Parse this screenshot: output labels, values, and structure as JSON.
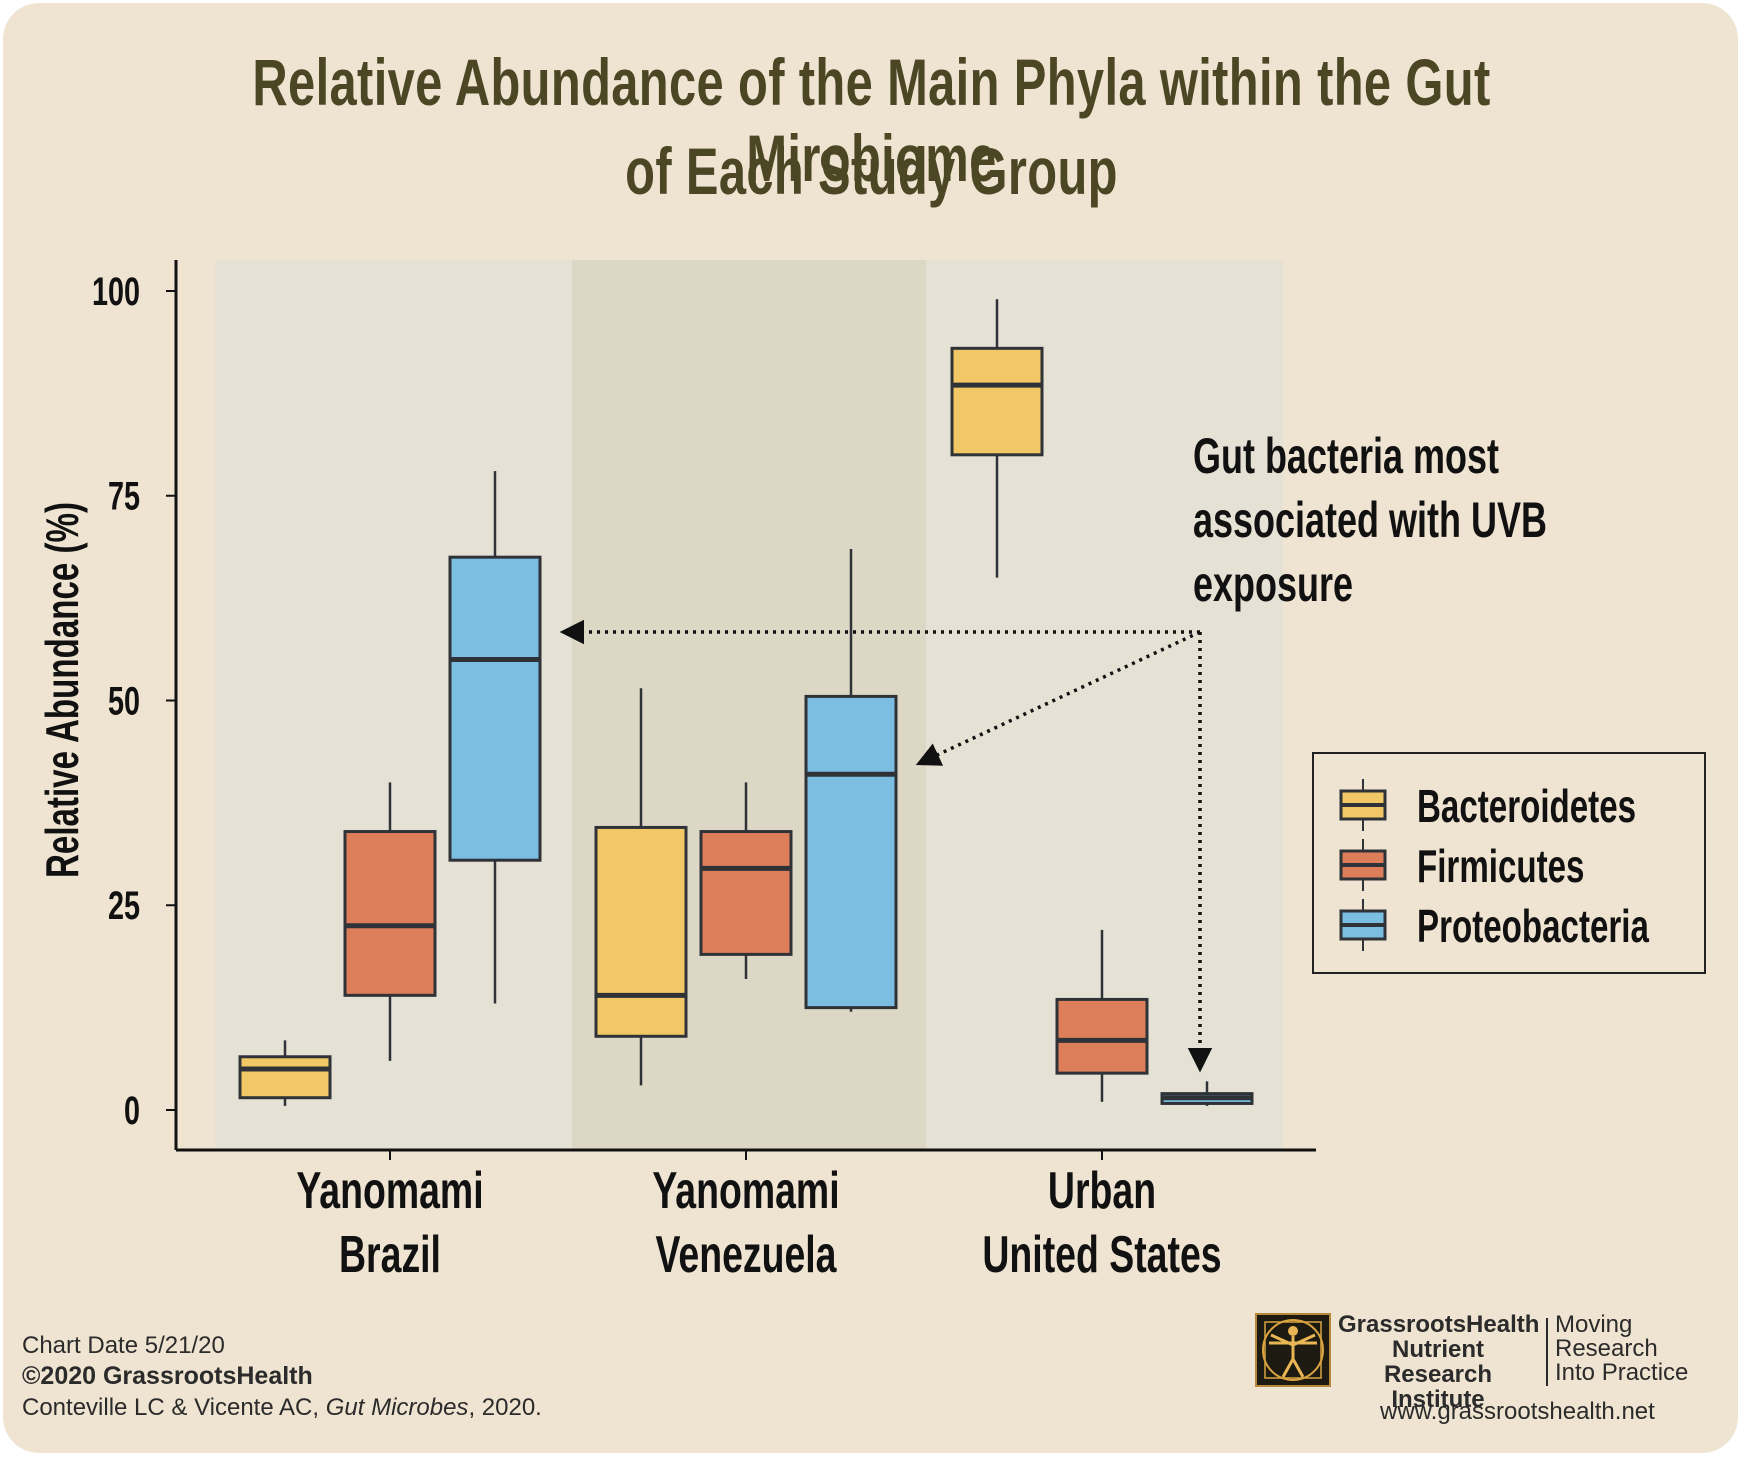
{
  "title_line1": "Relative Abundance of the Main Phyla within the Gut Mirobiome",
  "title_line2": "of Each Study Group",
  "colors": {
    "Bacteroidetes": "#f2c866",
    "Firmicutes": "#dd7e5a",
    "Proteobacteria": "#7cbde2",
    "panel_light": "#e5e2d5",
    "panel_dark": "#ddd8c5",
    "text": "#4b4725"
  },
  "chart_data": {
    "type": "boxplot",
    "ylabel": "Relative Abundance (%)",
    "ylim": [
      0,
      100
    ],
    "yticks": [
      0,
      25,
      50,
      75,
      100
    ],
    "categories": [
      {
        "line1": "Yanomami",
        "line2": "Brazil"
      },
      {
        "line1": "Yanomami",
        "line2": "Venezuela"
      },
      {
        "line1": "Urban",
        "line2": "United States"
      }
    ],
    "series": [
      {
        "name": "Bacteroidetes",
        "boxes": [
          {
            "min": 0.5,
            "q1": 1.5,
            "median": 5,
            "q3": 6.5,
            "max": 8.5
          },
          {
            "min": 3,
            "q1": 9,
            "median": 14,
            "q3": 34.5,
            "max": 51.5
          },
          {
            "min": 65,
            "q1": 80,
            "median": 88.5,
            "q3": 93,
            "max": 99
          }
        ]
      },
      {
        "name": "Firmicutes",
        "boxes": [
          {
            "min": 6,
            "q1": 14,
            "median": 22.5,
            "q3": 34,
            "max": 40
          },
          {
            "min": 16,
            "q1": 19,
            "median": 29.5,
            "q3": 34,
            "max": 40
          },
          {
            "min": 1,
            "q1": 4.5,
            "median": 8.5,
            "q3": 13.5,
            "max": 22
          }
        ]
      },
      {
        "name": "Proteobacteria",
        "boxes": [
          {
            "min": 13,
            "q1": 30.5,
            "median": 55,
            "q3": 67.5,
            "max": 78
          },
          {
            "min": 12,
            "q1": 12.5,
            "median": 41,
            "q3": 50.5,
            "max": 68.5
          },
          {
            "min": 0.5,
            "q1": 0.8,
            "median": 1.5,
            "q3": 2,
            "max": 3.5
          }
        ]
      }
    ],
    "legend": [
      "Bacteroidetes",
      "Firmicutes",
      "Proteobacteria"
    ],
    "legend_position": "right",
    "annotation": {
      "lines": [
        "Gut bacteria most",
        "associated with UVB",
        "exposure"
      ]
    }
  },
  "footer": {
    "chart_date": "Chart Date 5/21/20",
    "copyright": "©2020 GrassrootsHealth",
    "citation_authors": "Conteville LC &  Vicente AC, ",
    "citation_journal": "Gut Microbes",
    "citation_year": ", 2020.",
    "brand_line1": "GrassrootsHealth",
    "brand_line2": "Nutrient",
    "brand_line3": "Research Institute",
    "tag_line1": "Moving",
    "tag_line2": "Research",
    "tag_line3": "Into Practice",
    "website": "www.grassrootshealth.net"
  }
}
